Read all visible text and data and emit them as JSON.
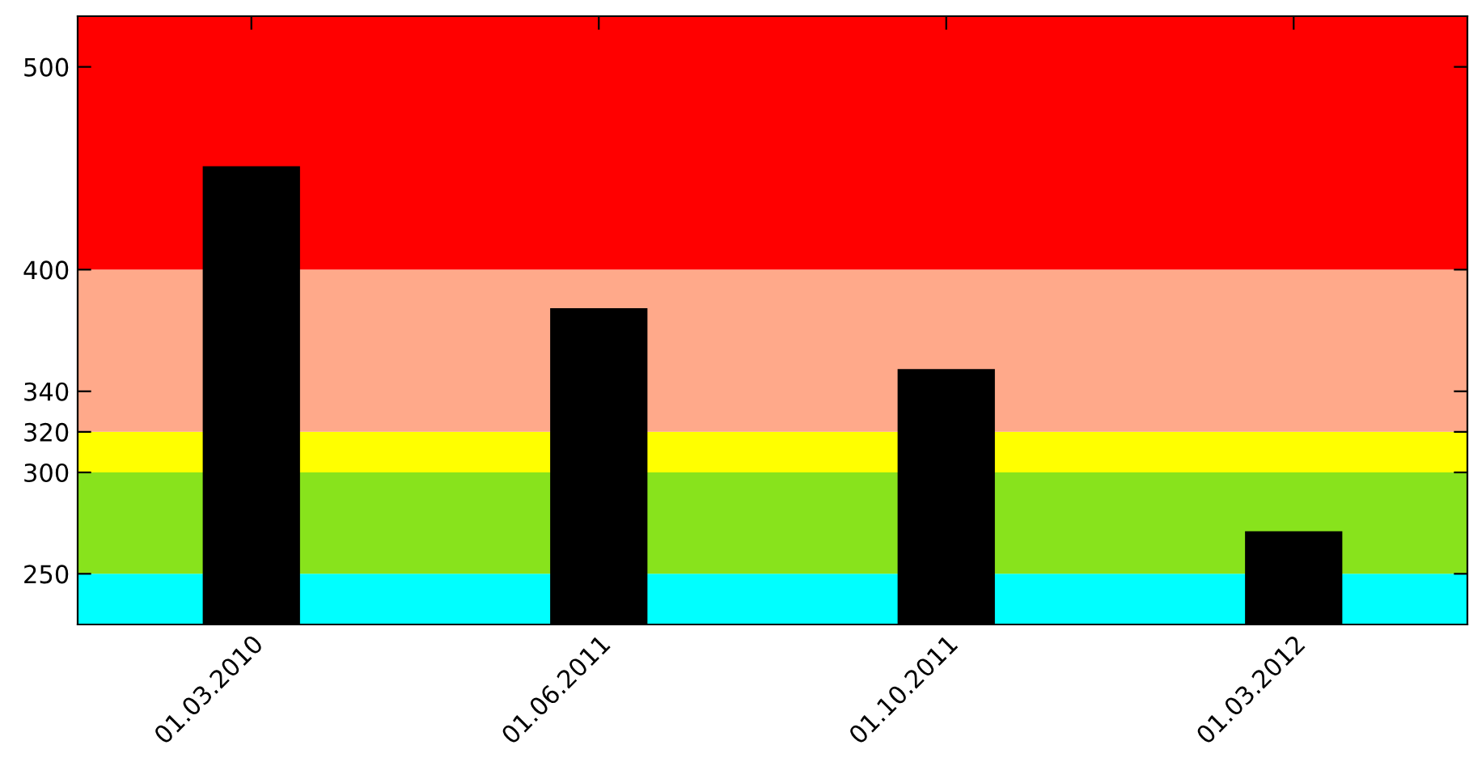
{
  "chart_data": {
    "type": "bar",
    "categories": [
      "01.03.2010",
      "01.06.2011",
      "01.10.2011",
      "01.03.2012"
    ],
    "values": [
      451,
      381,
      351,
      271
    ],
    "color": "#000000",
    "ylim": [
      225,
      525
    ],
    "yticks": [
      250,
      300,
      320,
      340,
      400,
      500
    ],
    "bands": [
      {
        "axis": "y",
        "from": 225,
        "to": 250,
        "color": "#00ffff"
      },
      {
        "axis": "y",
        "from": 250,
        "to": 300,
        "color": "#88e31c"
      },
      {
        "axis": "y",
        "from": 300,
        "to": 320,
        "color": "#ffff00"
      },
      {
        "axis": "y",
        "from": 320,
        "to": 400,
        "color": "#ffa98a"
      },
      {
        "axis": "y",
        "from": 400,
        "to": 525,
        "color": "#ff0000"
      }
    ],
    "grid": false,
    "legend": false
  }
}
